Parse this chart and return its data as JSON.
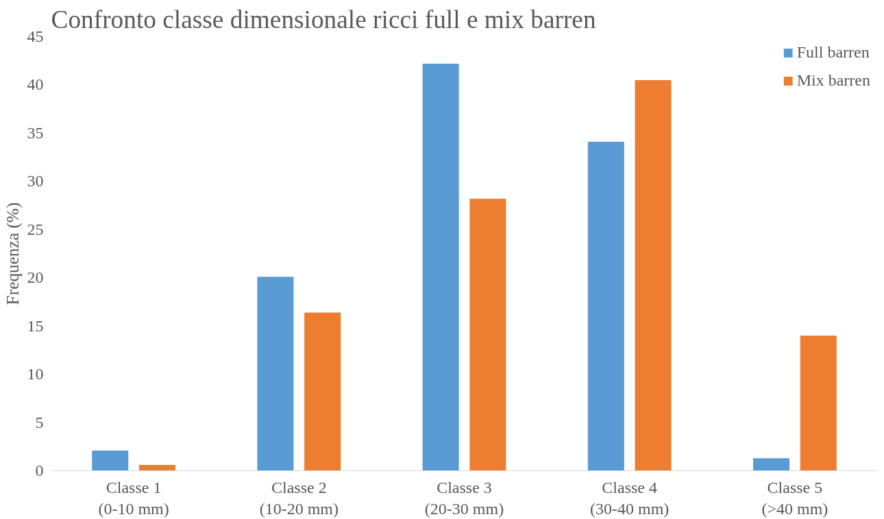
{
  "chart_data": {
    "type": "bar",
    "title": "Confronto classe dimensionale ricci full e mix barren",
    "ylabel": "Frequenza (%)",
    "categories": [
      "Classe 1\n(0-10 mm)",
      "Classe 2\n(10-20 mm)",
      "Classe 3\n(20-30 mm)",
      "Classe 4\n(30-40 mm)",
      "Classe 5\n(>40 mm)"
    ],
    "series": [
      {
        "name": "Full barren",
        "color": "#5b9bd5",
        "values": [
          2.1,
          20.1,
          42.2,
          34.1,
          1.3
        ]
      },
      {
        "name": "Mix barren",
        "color": "#ed7d31",
        "values": [
          0.6,
          16.4,
          28.2,
          40.5,
          14.0
        ]
      }
    ],
    "ylim": [
      0,
      45
    ],
    "yticks": [
      0,
      5,
      10,
      15,
      20,
      25,
      30,
      35,
      40,
      45
    ],
    "grid": false,
    "legend": "top right"
  }
}
